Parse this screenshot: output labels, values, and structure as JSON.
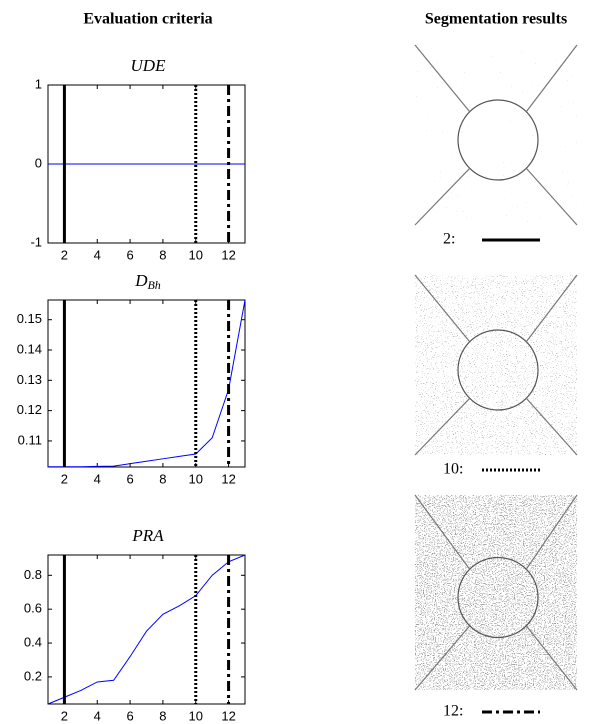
{
  "headers": {
    "left": "Evaluation criteria",
    "right": "Segmentation results"
  },
  "chart_data": [
    {
      "type": "line",
      "title": "UDE",
      "x": [
        1,
        2,
        3,
        4,
        5,
        6,
        7,
        8,
        9,
        10,
        11,
        12,
        13
      ],
      "series": [
        {
          "color": "#0000ff",
          "values": [
            0,
            0,
            0,
            0,
            0,
            0,
            0,
            0,
            0,
            0,
            0,
            0,
            0
          ]
        }
      ],
      "xlim": [
        1,
        13
      ],
      "ylim": [
        -1,
        1
      ],
      "xticks": [
        2,
        4,
        6,
        8,
        10,
        12
      ],
      "yticks": [
        -1,
        0,
        1
      ],
      "markers": [
        {
          "value": 2,
          "style": "solid"
        },
        {
          "value": 10,
          "style": "dotted"
        },
        {
          "value": 12,
          "style": "dashdot"
        }
      ]
    },
    {
      "type": "line",
      "title": "D",
      "title_subscript": "Bh",
      "x": [
        1,
        2,
        3,
        4,
        5,
        6,
        7,
        8,
        9,
        10,
        11,
        12,
        13
      ],
      "series": [
        {
          "color": "#0000ff",
          "values": [
            0.1015,
            0.1015,
            0.1015,
            0.1016,
            0.1017,
            0.1025,
            0.1033,
            0.1041,
            0.1049,
            0.1057,
            0.111,
            0.127,
            0.1565
          ]
        }
      ],
      "xlim": [
        1,
        13
      ],
      "ylim": [
        0.1014,
        0.1565
      ],
      "xticks": [
        2,
        4,
        6,
        8,
        10,
        12
      ],
      "yticks": [
        0.11,
        0.12,
        0.13,
        0.14,
        0.15
      ],
      "markers": [
        {
          "value": 2,
          "style": "solid"
        },
        {
          "value": 10,
          "style": "dotted"
        },
        {
          "value": 12,
          "style": "dashdot"
        }
      ]
    },
    {
      "type": "line",
      "title": "PRA",
      "x": [
        1,
        2,
        3,
        4,
        5,
        6,
        7,
        8,
        9,
        10,
        11,
        12,
        13
      ],
      "series": [
        {
          "color": "#0000ff",
          "values": [
            0.04,
            0.08,
            0.12,
            0.17,
            0.18,
            0.32,
            0.47,
            0.57,
            0.62,
            0.68,
            0.8,
            0.88,
            0.92
          ]
        }
      ],
      "xlim": [
        1,
        13
      ],
      "ylim": [
        0.04,
        0.92
      ],
      "xticks": [
        2,
        4,
        6,
        8,
        10,
        12
      ],
      "yticks": [
        0.2,
        0.4,
        0.6,
        0.8
      ],
      "markers": [
        {
          "value": 2,
          "style": "solid"
        },
        {
          "value": 10,
          "style": "dotted"
        },
        {
          "value": 12,
          "style": "dashdot"
        }
      ]
    }
  ],
  "results": [
    {
      "label": "2:",
      "style": "solid"
    },
    {
      "label": "10:",
      "style": "dotted"
    },
    {
      "label": "12:",
      "style": "dashdot"
    }
  ]
}
